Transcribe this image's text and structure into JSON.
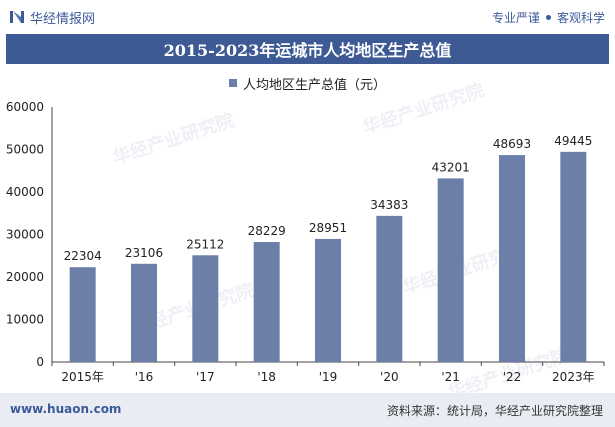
{
  "header": {
    "brand": "华经情报网",
    "tagline_left": "专业严谨",
    "tagline_right": "客观科学"
  },
  "title": "2015-2023年运城市人均地区生产总值",
  "watermark": "华经产业研究院",
  "footer": {
    "url": "www.huaon.com",
    "source": "资料来源：统计局，华经产业研究院整理"
  },
  "colors": {
    "title_bg": "#3d5a94",
    "bar": "#6b7fa8",
    "footer_bg": "#e9ecf2"
  },
  "chart_data": {
    "type": "bar",
    "categories": [
      "2015年",
      "'16",
      "'17",
      "'18",
      "'19",
      "'20",
      "'21",
      "'22",
      "2023年"
    ],
    "series": [
      {
        "name": "人均地区生产总值（元）",
        "values": [
          22304,
          23106,
          25112,
          28229,
          28951,
          34383,
          43201,
          48693,
          49445
        ]
      }
    ],
    "ylim": [
      0,
      60000
    ],
    "yticks": [
      "0",
      "10000",
      "20000",
      "30000",
      "40000",
      "50000",
      "60000"
    ],
    "grid": false,
    "legend": "top-center"
  }
}
